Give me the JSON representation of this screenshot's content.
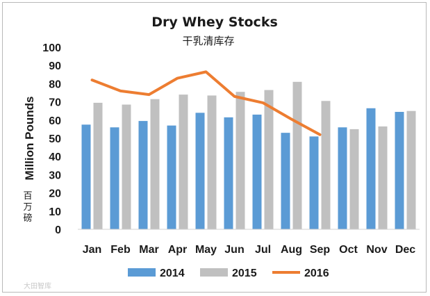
{
  "chart_data": {
    "type": "bar",
    "title": "Dry Whey Stocks",
    "subtitle": "干乳清库存",
    "xlabel": "",
    "ylabel": "Million Pounds",
    "ylabel_cn": "百万磅",
    "ylim": [
      0,
      100
    ],
    "yticks": [
      0,
      10,
      20,
      30,
      40,
      50,
      60,
      70,
      80,
      90,
      100
    ],
    "grid": false,
    "legend_position": "bottom",
    "categories": [
      "Jan",
      "Feb",
      "Mar",
      "Apr",
      "May",
      "Jun",
      "Jul",
      "Aug",
      "Sep",
      "Oct",
      "Nov",
      "Dec"
    ],
    "series": [
      {
        "name": "2014",
        "kind": "bar",
        "color": "#5b9bd5",
        "values": [
          57.5,
          56,
          59.5,
          57,
          64,
          61.5,
          63,
          53,
          51,
          56,
          66.5,
          64.5
        ]
      },
      {
        "name": "2015",
        "kind": "bar",
        "color": "#c0c0c0",
        "values": [
          69.5,
          68.5,
          71.5,
          74,
          73.5,
          75.5,
          76.5,
          81,
          70.5,
          55,
          56.5,
          65
        ]
      },
      {
        "name": "2016",
        "kind": "line",
        "color": "#ed7d31",
        "values": [
          82,
          76,
          74,
          83,
          86.5,
          73,
          69.5,
          60.5,
          52,
          null,
          null,
          null
        ]
      }
    ]
  },
  "watermark": "大田智库"
}
